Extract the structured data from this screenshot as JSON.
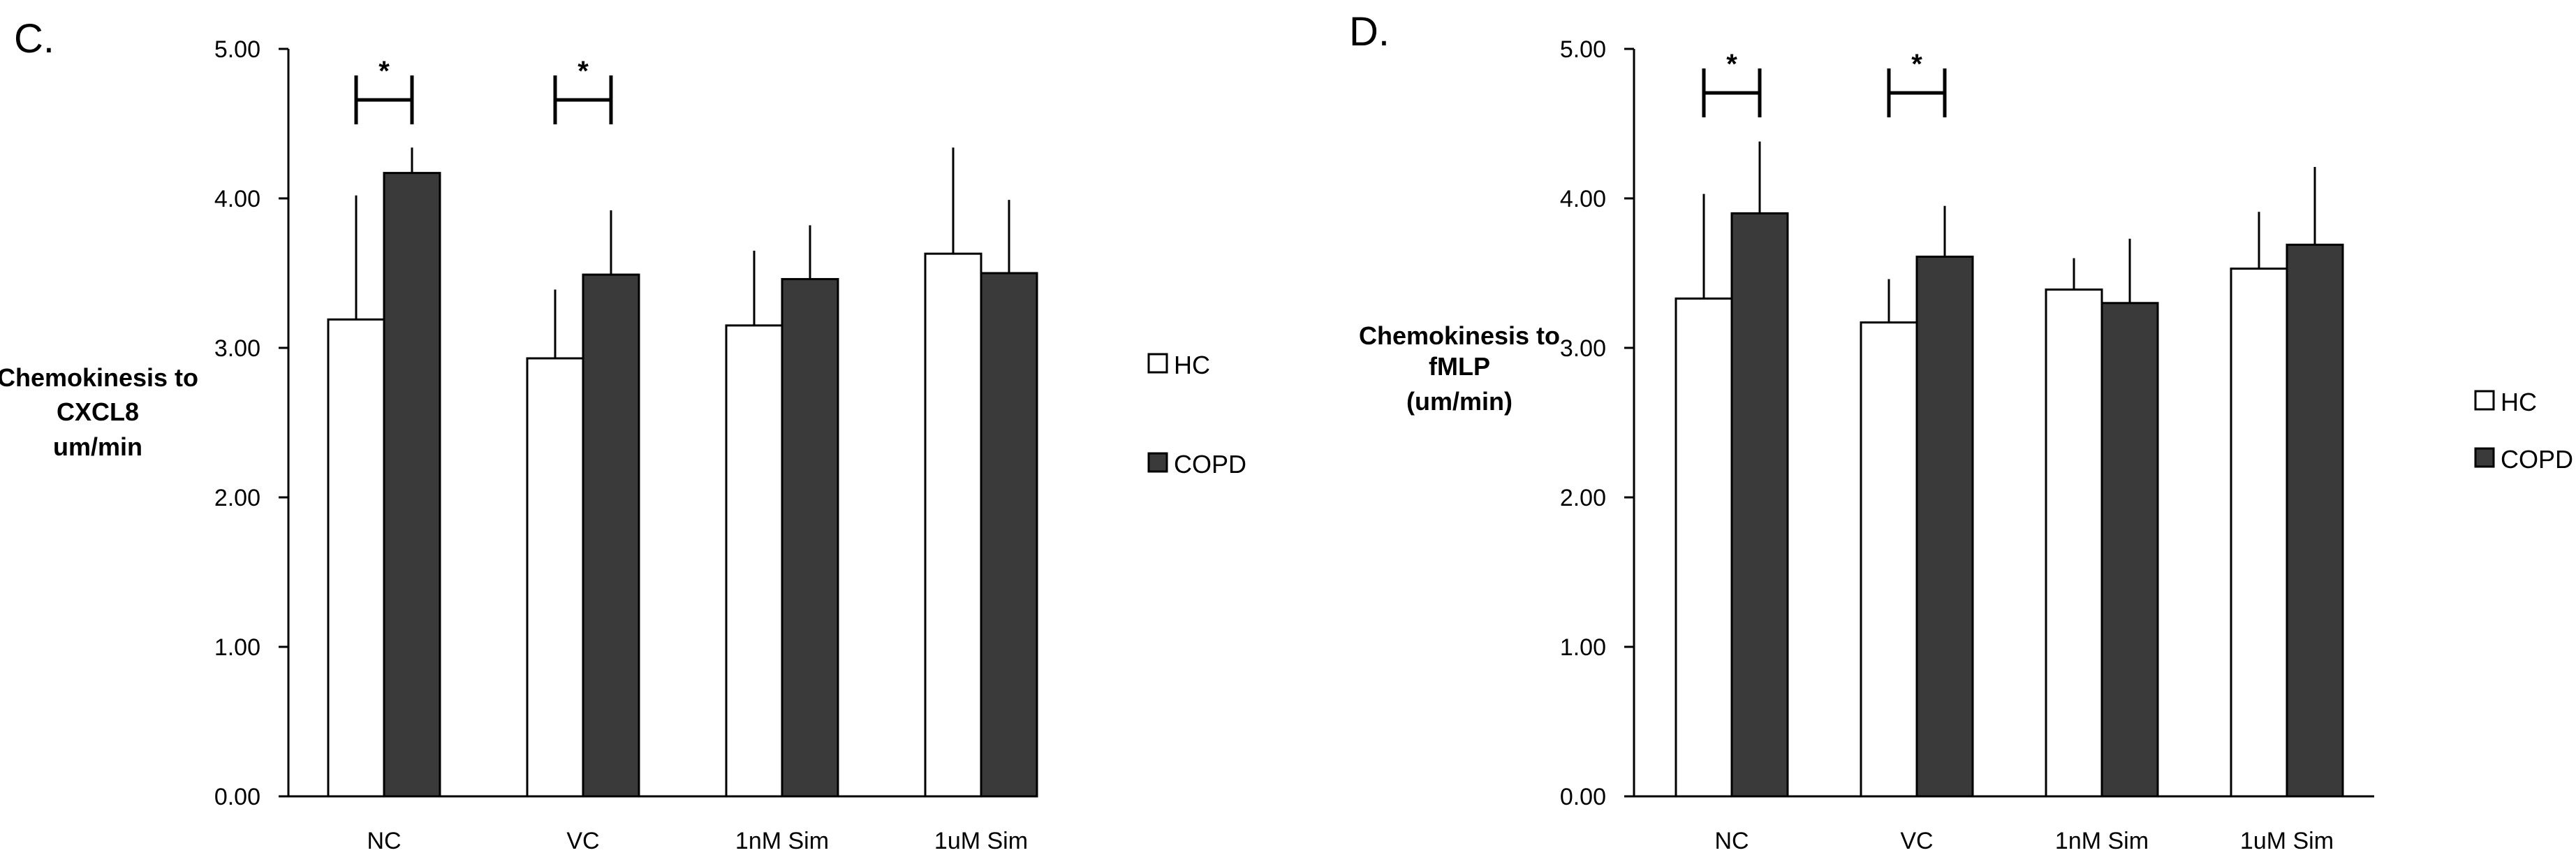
{
  "chart_data": [
    {
      "type": "bar",
      "panel_label": "C.",
      "ylabel_lines": [
        "Chemokinesis to",
        "CXCL8",
        "um/min"
      ],
      "xlabel": "",
      "categories": [
        "NC",
        "VC",
        "1nM Sim",
        "1uM Sim"
      ],
      "ylim": [
        0,
        5
      ],
      "yticks": [
        "0.00",
        "1.00",
        "2.00",
        "3.00",
        "4.00",
        "5.00"
      ],
      "series": [
        {
          "name": "HC",
          "color": "#ffffff",
          "values": [
            3.19,
            2.93,
            3.15,
            3.63
          ],
          "errors": [
            0.83,
            0.46,
            0.5,
            0.71
          ]
        },
        {
          "name": "COPD",
          "color": "#3a3a3a",
          "values": [
            4.17,
            3.49,
            3.46,
            3.5
          ],
          "errors": [
            0.17,
            0.43,
            0.36,
            0.49
          ]
        }
      ],
      "significance": [
        {
          "category": "NC",
          "label": "*"
        },
        {
          "category": "VC",
          "label": "*"
        }
      ],
      "legend": [
        "HC",
        "COPD"
      ]
    },
    {
      "type": "bar",
      "panel_label": "D.",
      "ylabel_lines": [
        "Chemokinesis to",
        "fMLP",
        "(um/min)"
      ],
      "xlabel": "",
      "categories": [
        "NC",
        "VC",
        "1nM Sim",
        "1uM Sim"
      ],
      "ylim": [
        0,
        5
      ],
      "yticks": [
        "0.00",
        "1.00",
        "2.00",
        "3.00",
        "4.00",
        "5.00"
      ],
      "series": [
        {
          "name": "HC",
          "color": "#ffffff",
          "values": [
            3.33,
            3.17,
            3.39,
            3.53
          ],
          "errors": [
            0.7,
            0.29,
            0.21,
            0.38
          ]
        },
        {
          "name": "COPD",
          "color": "#3a3a3a",
          "values": [
            3.9,
            3.61,
            3.3,
            3.69
          ],
          "errors": [
            0.48,
            0.34,
            0.43,
            0.52
          ]
        }
      ],
      "significance": [
        {
          "category": "NC",
          "label": "*"
        },
        {
          "category": "VC",
          "label": "*"
        }
      ],
      "legend": [
        "HC",
        "COPD"
      ]
    }
  ]
}
